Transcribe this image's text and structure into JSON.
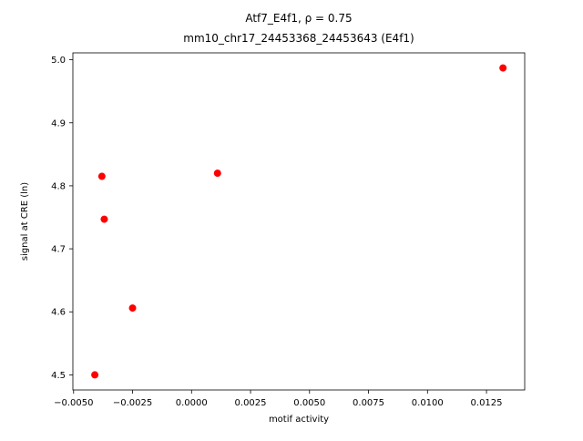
{
  "figure": {
    "background": "#ffffff"
  },
  "chart_data": {
    "type": "scatter",
    "title": "Atf7_E4f1, ρ = 0.75",
    "subtitle": "mm10_chr17_24453368_24453643 (E4f1)",
    "xlabel": "motif activity",
    "ylabel": "signal at CRE (ln)",
    "marker_color": "#ff0000",
    "marker_shape": "circle",
    "grid": false,
    "legend": "none",
    "xlim": [
      -0.00503,
      0.01412
    ],
    "ylim": [
      4.476,
      5.011
    ],
    "xticks": {
      "values": [
        -0.005,
        -0.0025,
        0.0,
        0.0025,
        0.005,
        0.0075,
        0.01,
        0.0125
      ],
      "labels": [
        "−0.0050",
        "−0.0025",
        "0.0000",
        "0.0025",
        "0.0050",
        "0.0075",
        "0.0100",
        "0.0125"
      ]
    },
    "yticks": {
      "values": [
        4.5,
        4.6,
        4.7,
        4.8,
        4.9,
        5.0
      ],
      "labels": [
        "4.5",
        "4.6",
        "4.7",
        "4.8",
        "4.9",
        "5.0"
      ]
    },
    "points": [
      {
        "x": -0.0041,
        "y": 4.5
      },
      {
        "x": -0.0038,
        "y": 4.815
      },
      {
        "x": -0.0037,
        "y": 4.747
      },
      {
        "x": -0.0025,
        "y": 4.606
      },
      {
        "x": 0.0011,
        "y": 4.82
      },
      {
        "x": 0.0132,
        "y": 4.987
      }
    ]
  }
}
